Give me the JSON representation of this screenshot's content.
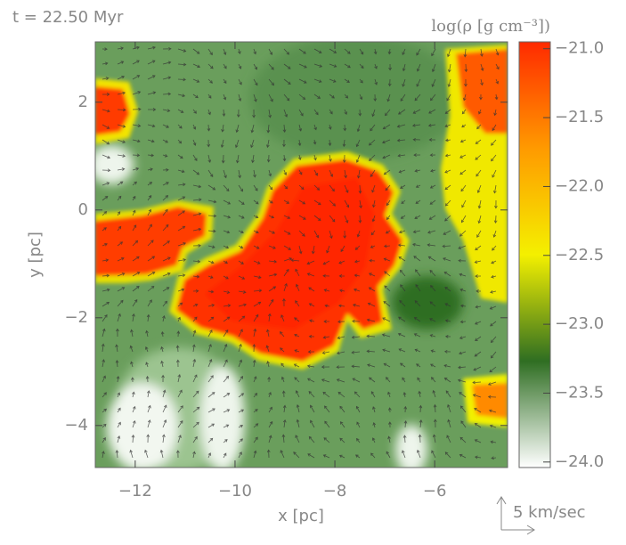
{
  "chart_data": {
    "type": "image",
    "title": "t = 22.50 Myr",
    "xlabel": "x [pc]",
    "ylabel": "y [pc]",
    "xlim": [
      -12.8,
      -4.54
    ],
    "xticks": [
      {
        "value": -12,
        "label": "−12"
      },
      {
        "value": -10,
        "label": "−10"
      },
      {
        "value": -8,
        "label": "−8"
      },
      {
        "value": -6,
        "label": "−6"
      }
    ],
    "ylim": [
      -4.78,
      3.12
    ],
    "yticks": [
      {
        "value": -4,
        "label": "−4"
      },
      {
        "value": -2,
        "label": "−2"
      },
      0,
      2
    ],
    "colorbar": {
      "label": "log(ρ [g cm⁻³])",
      "lim": [
        -24.04,
        -20.95
      ],
      "ticks": [
        {
          "value": -21,
          "label": "−21.0"
        },
        {
          "value": -21.5,
          "label": "−21.5"
        },
        {
          "value": -22,
          "label": "−22.0"
        },
        {
          "value": -22.5,
          "label": "−22.5"
        },
        {
          "value": -23,
          "label": "−23.0"
        },
        {
          "value": -23.5,
          "label": "−23.5"
        },
        {
          "value": -24,
          "label": "−24.0"
        }
      ],
      "colors": [
        "#ffffff",
        "#2f6e22",
        "#f4f000",
        "#ff9a00",
        "#ff2a00"
      ]
    },
    "vector_key": "5 km/sec"
  }
}
